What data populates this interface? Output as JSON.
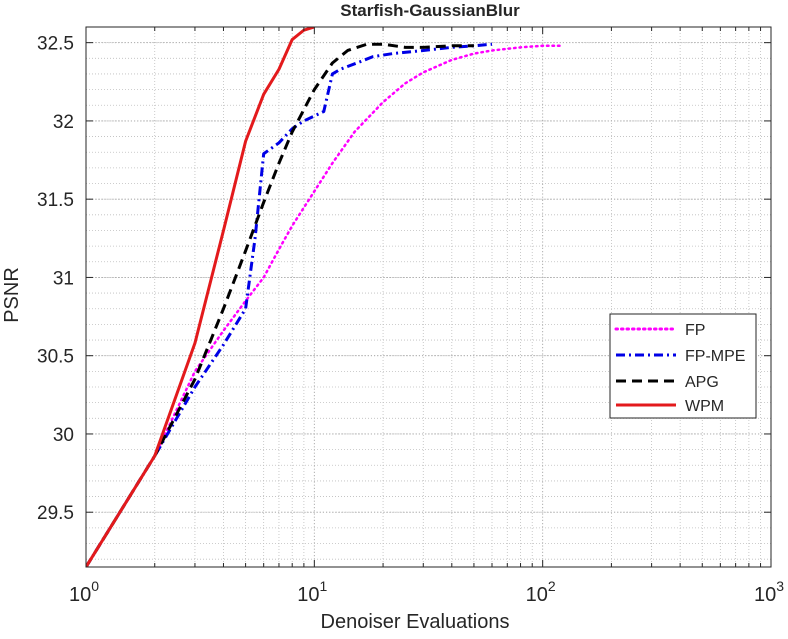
{
  "chart_data": {
    "type": "line",
    "title": "Starfish-GaussianBlur",
    "xlabel": "Denoiser Evaluations",
    "ylabel": "PSNR",
    "xscale": "log",
    "xlim": [
      1,
      1000
    ],
    "ylim": [
      29.15,
      32.6
    ],
    "x_ticks": [
      {
        "value": 1,
        "base": "10",
        "exp": "0"
      },
      {
        "value": 10,
        "base": "10",
        "exp": "1"
      },
      {
        "value": 100,
        "base": "10",
        "exp": "2"
      },
      {
        "value": 1000,
        "base": "10",
        "exp": "3"
      }
    ],
    "y_ticks": [
      {
        "value": 29.5,
        "label": "29.5"
      },
      {
        "value": 30,
        "label": "30"
      },
      {
        "value": 30.5,
        "label": "30.5"
      },
      {
        "value": 31,
        "label": "31"
      },
      {
        "value": 31.5,
        "label": "31.5"
      },
      {
        "value": 32,
        "label": "32"
      },
      {
        "value": 32.5,
        "label": "32.5"
      }
    ],
    "grid": true,
    "minor_grid": true,
    "legend_position": "right",
    "series": [
      {
        "name": "FP",
        "color": "#ff00ff",
        "style": "dotted",
        "points": [
          [
            1,
            29.15
          ],
          [
            2,
            29.86
          ],
          [
            3,
            30.4
          ],
          [
            4,
            30.66
          ],
          [
            5,
            30.85
          ],
          [
            6,
            31.0
          ],
          [
            7,
            31.18
          ],
          [
            8,
            31.33
          ],
          [
            10,
            31.55
          ],
          [
            12,
            31.73
          ],
          [
            15,
            31.93
          ],
          [
            20,
            32.12
          ],
          [
            25,
            32.24
          ],
          [
            30,
            32.31
          ],
          [
            40,
            32.39
          ],
          [
            50,
            32.43
          ],
          [
            60,
            32.45
          ],
          [
            80,
            32.47
          ],
          [
            100,
            32.48
          ],
          [
            120,
            32.48
          ]
        ]
      },
      {
        "name": "FP-MPE",
        "color": "#0000e6",
        "style": "dashdot",
        "points": [
          [
            1,
            29.15
          ],
          [
            2,
            29.86
          ],
          [
            3,
            30.3
          ],
          [
            4,
            30.57
          ],
          [
            5,
            30.8
          ],
          [
            5.5,
            31.25
          ],
          [
            6,
            31.79
          ],
          [
            7,
            31.86
          ],
          [
            8,
            31.95
          ],
          [
            9,
            32.0
          ],
          [
            11,
            32.06
          ],
          [
            12,
            32.3
          ],
          [
            13,
            32.33
          ],
          [
            16,
            32.38
          ],
          [
            18,
            32.41
          ],
          [
            22,
            32.43
          ],
          [
            30,
            32.45
          ],
          [
            40,
            32.47
          ],
          [
            50,
            32.48
          ],
          [
            60,
            32.49
          ]
        ]
      },
      {
        "name": "APG",
        "color": "#000000",
        "style": "dashed",
        "points": [
          [
            1,
            29.15
          ],
          [
            2,
            29.86
          ],
          [
            3,
            30.35
          ],
          [
            4,
            30.8
          ],
          [
            5,
            31.17
          ],
          [
            6,
            31.48
          ],
          [
            7,
            31.73
          ],
          [
            8,
            31.93
          ],
          [
            10,
            32.2
          ],
          [
            12,
            32.37
          ],
          [
            14,
            32.45
          ],
          [
            17,
            32.49
          ],
          [
            20,
            32.49
          ],
          [
            25,
            32.47
          ],
          [
            30,
            32.47
          ],
          [
            40,
            32.48
          ],
          [
            50,
            32.48
          ]
        ]
      },
      {
        "name": "WPM",
        "color": "#e31a1c",
        "style": "solid",
        "points": [
          [
            1,
            29.15
          ],
          [
            2,
            29.86
          ],
          [
            3,
            30.58
          ],
          [
            4,
            31.3
          ],
          [
            5,
            31.87
          ],
          [
            6,
            32.17
          ],
          [
            7,
            32.33
          ],
          [
            8,
            32.52
          ],
          [
            9,
            32.58
          ],
          [
            10,
            32.6
          ]
        ]
      }
    ]
  }
}
